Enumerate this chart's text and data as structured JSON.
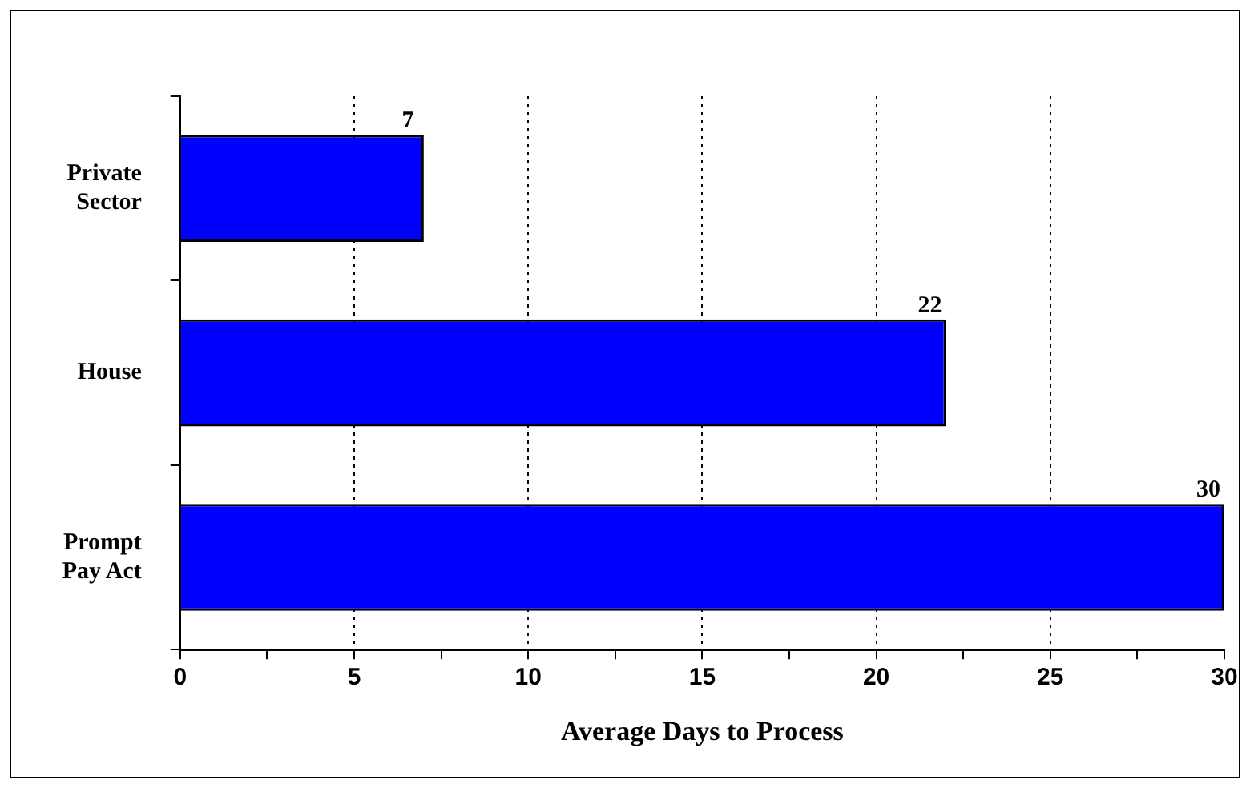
{
  "chart_data": {
    "type": "bar",
    "orientation": "horizontal",
    "xlabel": "Average Days to Process",
    "categories": [
      "Private Sector",
      "House",
      "Prompt Pay Act"
    ],
    "values": [
      7,
      22,
      30
    ],
    "color": "#0000ff",
    "xlim": [
      0,
      30
    ],
    "xticks": [
      0,
      {
        "value": 2.5,
        "label": null
      },
      5,
      {
        "value": 7.5,
        "label": null
      },
      10,
      {
        "value": 12.5,
        "label": null
      },
      15,
      {
        "value": 17.5,
        "label": null
      },
      20,
      {
        "value": 22.5,
        "label": null
      },
      25,
      {
        "value": 27.5,
        "label": null
      },
      30
    ],
    "grid": "x",
    "data_labels": true,
    "legend": false
  }
}
